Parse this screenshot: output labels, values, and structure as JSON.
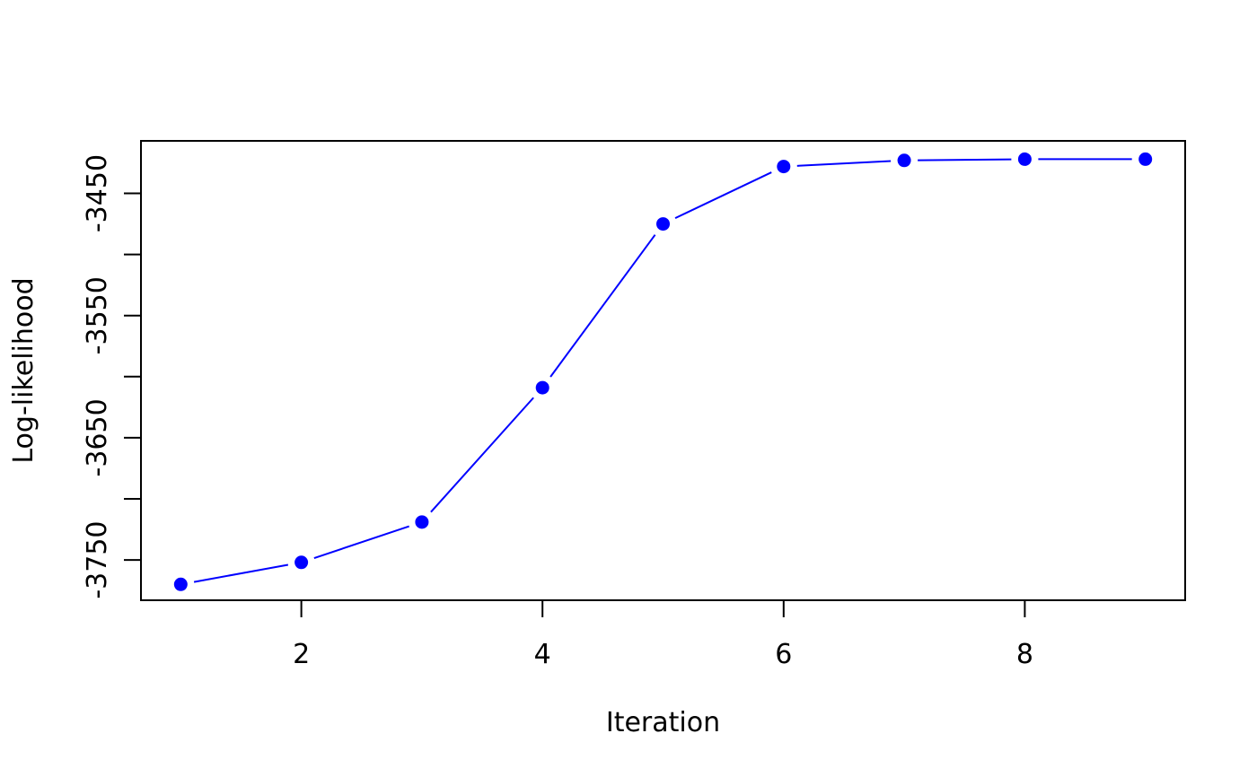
{
  "chart_data": {
    "type": "line",
    "title": "",
    "xlabel": "Iteration",
    "ylabel": "Log-likelihood",
    "x": [
      1,
      2,
      3,
      4,
      5,
      6,
      7,
      8,
      9
    ],
    "series": [
      {
        "values": [
          -3770,
          -3752,
          -3719,
          -3609,
          -3475,
          -3428,
          -3423,
          -3422,
          -3422
        ],
        "color": "#0000FF",
        "marker": "filled-circle"
      }
    ],
    "xlim": [
      0.67,
      9.33
    ],
    "ylim": [
      -3783,
      -3407
    ],
    "xticks": [
      2,
      4,
      6,
      8
    ],
    "xtick_labels": [
      "2",
      "4",
      "6",
      "8"
    ],
    "yticks": [
      -3750,
      -3700,
      -3650,
      -3600,
      -3550,
      -3500,
      -3450
    ],
    "ytick_labels": [
      "-3750",
      "",
      "-3650",
      "",
      "-3550",
      "",
      "-3450"
    ],
    "grid": false,
    "legend": "none",
    "box": true
  }
}
